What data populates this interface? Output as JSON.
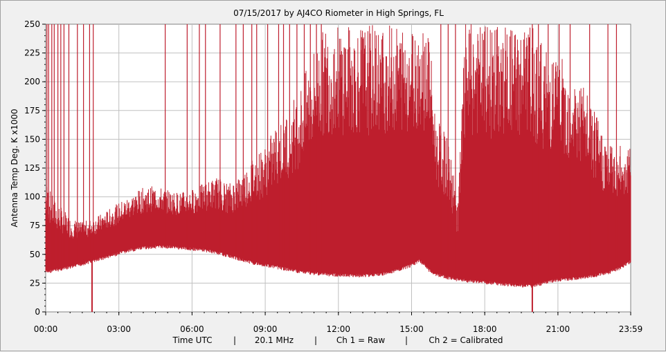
{
  "chart_data": {
    "type": "area",
    "title": "07/15/2017  by  AJ4CO Riometer  in  High Springs, FL",
    "ylabel": "Antenna Temp Deg. K x1000",
    "xlabel": "Time UTC",
    "footer": [
      "Time UTC",
      "|",
      "20.1 MHz",
      "|",
      "Ch 1 = Raw",
      "|",
      "Ch 2 = Calibrated"
    ],
    "x_range_hours": [
      0,
      23.9833
    ],
    "ylim": [
      0,
      250
    ],
    "x_ticks": [
      {
        "h": 0,
        "label": "00:00"
      },
      {
        "h": 3,
        "label": "03:00"
      },
      {
        "h": 6,
        "label": "06:00"
      },
      {
        "h": 9,
        "label": "09:00"
      },
      {
        "h": 12,
        "label": "12:00"
      },
      {
        "h": 15,
        "label": "15:00"
      },
      {
        "h": 18,
        "label": "18:00"
      },
      {
        "h": 21,
        "label": "21:00"
      },
      {
        "h": 23.9833,
        "label": "23:59"
      }
    ],
    "y_ticks": [
      0,
      25,
      50,
      75,
      100,
      125,
      150,
      175,
      200,
      225,
      250
    ],
    "grid": true,
    "series": [
      {
        "color": "#be1e2d",
        "baseline": [
          [
            0.0,
            38
          ],
          [
            0.5,
            40
          ],
          [
            1.0,
            42
          ],
          [
            1.5,
            45
          ],
          [
            2.0,
            48
          ],
          [
            2.5,
            51
          ],
          [
            3.0,
            54
          ],
          [
            3.5,
            57
          ],
          [
            4.0,
            59
          ],
          [
            4.5,
            60
          ],
          [
            5.0,
            60
          ],
          [
            5.5,
            59
          ],
          [
            6.0,
            58
          ],
          [
            6.5,
            57
          ],
          [
            7.0,
            55
          ],
          [
            7.5,
            52
          ],
          [
            8.0,
            49
          ],
          [
            8.5,
            46
          ],
          [
            9.0,
            44
          ],
          [
            9.5,
            42
          ],
          [
            10.0,
            40
          ],
          [
            10.5,
            38
          ],
          [
            11.0,
            37
          ],
          [
            11.5,
            36
          ],
          [
            12.0,
            35.5
          ],
          [
            12.5,
            35
          ],
          [
            13.0,
            35
          ],
          [
            13.5,
            35.5
          ],
          [
            14.0,
            37
          ],
          [
            14.5,
            40
          ],
          [
            15.0,
            44
          ],
          [
            15.3,
            48
          ],
          [
            15.5,
            45
          ],
          [
            15.7,
            40
          ],
          [
            16.0,
            36
          ],
          [
            16.5,
            33
          ],
          [
            17.0,
            31
          ],
          [
            17.5,
            30
          ],
          [
            18.0,
            29
          ],
          [
            18.5,
            28
          ],
          [
            19.0,
            27
          ],
          [
            19.5,
            26
          ],
          [
            20.0,
            26
          ],
          [
            20.5,
            29
          ],
          [
            21.0,
            31
          ],
          [
            21.5,
            32
          ],
          [
            22.0,
            33
          ],
          [
            22.5,
            35
          ],
          [
            23.0,
            37
          ],
          [
            23.5,
            41
          ],
          [
            23.9833,
            47
          ]
        ],
        "envelope": [
          [
            0.0,
            115
          ],
          [
            0.3,
            100
          ],
          [
            0.6,
            92
          ],
          [
            1.0,
            82
          ],
          [
            1.5,
            78
          ],
          [
            2.0,
            82
          ],
          [
            2.5,
            88
          ],
          [
            3.0,
            95
          ],
          [
            3.5,
            102
          ],
          [
            4.0,
            108
          ],
          [
            4.5,
            110
          ],
          [
            5.0,
            106
          ],
          [
            5.5,
            104
          ],
          [
            6.0,
            107
          ],
          [
            6.5,
            112
          ],
          [
            7.0,
            118
          ],
          [
            7.5,
            112
          ],
          [
            8.0,
            120
          ],
          [
            8.5,
            135
          ],
          [
            9.0,
            145
          ],
          [
            9.5,
            165
          ],
          [
            10.0,
            180
          ],
          [
            10.5,
            200
          ],
          [
            11.0,
            230
          ],
          [
            11.5,
            250
          ],
          [
            15.7,
            250
          ],
          [
            16.0,
            170
          ],
          [
            16.5,
            150
          ],
          [
            16.9,
            95
          ],
          [
            17.2,
            250
          ],
          [
            19.9,
            250
          ],
          [
            20.5,
            230
          ],
          [
            21.0,
            225
          ],
          [
            21.5,
            210
          ],
          [
            22.0,
            200
          ],
          [
            22.5,
            175
          ],
          [
            23.0,
            150
          ],
          [
            23.5,
            145
          ],
          [
            23.9833,
            145
          ]
        ],
        "dips": [
          {
            "h": 1.9,
            "value": 0
          },
          {
            "h": 19.95,
            "value": 0
          }
        ],
        "spikes_to_max_hours": [
          0.05,
          0.12,
          0.25,
          0.35,
          0.5,
          0.62,
          0.75,
          0.95,
          1.3,
          1.55,
          1.8,
          1.95,
          4.9,
          5.8,
          6.3,
          6.55,
          7.15,
          7.8,
          8.1,
          8.45,
          8.65,
          9.1,
          9.55,
          9.75,
          10.0,
          10.3,
          10.6,
          10.85,
          11.1,
          11.3,
          16.2,
          16.5,
          16.8,
          19.95,
          20.2,
          20.6,
          21.05,
          21.5,
          22.3,
          23.05,
          23.4
        ]
      }
    ]
  }
}
